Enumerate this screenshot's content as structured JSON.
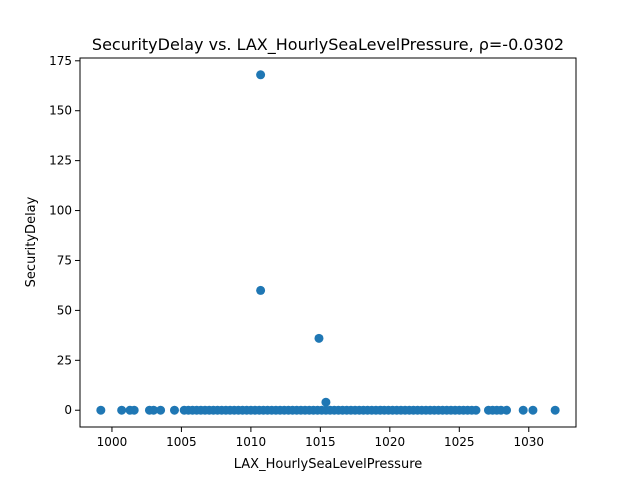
{
  "chart_data": {
    "type": "scatter",
    "title": "SecurityDelay vs. LAX_HourlySeaLevelPressure, ρ=-0.0302",
    "xlabel": "LAX_HourlySeaLevelPressure",
    "ylabel": "SecurityDelay",
    "xlim": [
      997.7,
      1033.4
    ],
    "ylim": [
      -8.4,
      176.4
    ],
    "xticks": [
      1000,
      1005,
      1010,
      1015,
      1020,
      1025,
      1030
    ],
    "yticks": [
      0,
      25,
      50,
      75,
      100,
      125,
      150,
      175
    ],
    "grid": false,
    "marker_color": "#1f77b4",
    "series": [
      {
        "points": [
          [
            999.2,
            0
          ],
          [
            1000.7,
            0
          ],
          [
            1001.3,
            0
          ],
          [
            1001.6,
            0
          ],
          [
            1002.7,
            0
          ],
          [
            1003.0,
            0
          ],
          [
            1003.5,
            0
          ],
          [
            1004.5,
            0
          ],
          [
            1005.2,
            0
          ],
          [
            1005.5,
            0
          ],
          [
            1005.8,
            0
          ],
          [
            1006.1,
            0
          ],
          [
            1006.4,
            0
          ],
          [
            1006.7,
            0
          ],
          [
            1007.0,
            0
          ],
          [
            1007.3,
            0
          ],
          [
            1007.6,
            0
          ],
          [
            1007.9,
            0
          ],
          [
            1008.2,
            0
          ],
          [
            1008.5,
            0
          ],
          [
            1008.8,
            0
          ],
          [
            1009.1,
            0
          ],
          [
            1009.4,
            0
          ],
          [
            1009.7,
            0
          ],
          [
            1010.0,
            0
          ],
          [
            1010.3,
            0
          ],
          [
            1010.6,
            0
          ],
          [
            1010.9,
            0
          ],
          [
            1011.2,
            0
          ],
          [
            1011.5,
            0
          ],
          [
            1011.8,
            0
          ],
          [
            1012.1,
            0
          ],
          [
            1012.4,
            0
          ],
          [
            1012.7,
            0
          ],
          [
            1013.0,
            0
          ],
          [
            1013.3,
            0
          ],
          [
            1013.6,
            0
          ],
          [
            1013.9,
            0
          ],
          [
            1014.2,
            0
          ],
          [
            1014.5,
            0
          ],
          [
            1014.8,
            0
          ],
          [
            1015.1,
            0
          ],
          [
            1015.4,
            0
          ],
          [
            1015.7,
            0
          ],
          [
            1016.0,
            0
          ],
          [
            1016.3,
            0
          ],
          [
            1016.6,
            0
          ],
          [
            1016.9,
            0
          ],
          [
            1017.2,
            0
          ],
          [
            1017.5,
            0
          ],
          [
            1017.8,
            0
          ],
          [
            1018.1,
            0
          ],
          [
            1018.4,
            0
          ],
          [
            1018.7,
            0
          ],
          [
            1019.0,
            0
          ],
          [
            1019.3,
            0
          ],
          [
            1019.6,
            0
          ],
          [
            1019.9,
            0
          ],
          [
            1020.2,
            0
          ],
          [
            1020.5,
            0
          ],
          [
            1020.8,
            0
          ],
          [
            1021.1,
            0
          ],
          [
            1021.4,
            0
          ],
          [
            1021.7,
            0
          ],
          [
            1022.0,
            0
          ],
          [
            1022.3,
            0
          ],
          [
            1022.6,
            0
          ],
          [
            1022.9,
            0
          ],
          [
            1023.2,
            0
          ],
          [
            1023.5,
            0
          ],
          [
            1023.8,
            0
          ],
          [
            1024.1,
            0
          ],
          [
            1024.4,
            0
          ],
          [
            1024.7,
            0
          ],
          [
            1025.0,
            0
          ],
          [
            1025.3,
            0
          ],
          [
            1025.6,
            0
          ],
          [
            1025.9,
            0
          ],
          [
            1026.2,
            0
          ],
          [
            1027.1,
            0
          ],
          [
            1027.4,
            0
          ],
          [
            1027.7,
            0
          ],
          [
            1028.0,
            0
          ],
          [
            1028.4,
            0
          ],
          [
            1029.6,
            0
          ],
          [
            1030.3,
            0
          ],
          [
            1031.9,
            0
          ],
          [
            1010.7,
            168
          ],
          [
            1010.7,
            60
          ],
          [
            1014.9,
            36
          ],
          [
            1015.4,
            4
          ]
        ]
      }
    ]
  }
}
